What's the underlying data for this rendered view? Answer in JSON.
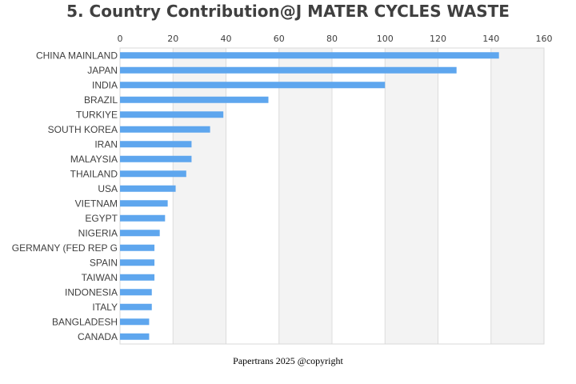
{
  "chart_data": {
    "type": "bar",
    "orientation": "horizontal",
    "title": "5. Country Contribution@J MATER CYCLES WASTE",
    "categories": [
      "CHINA MAINLAND",
      "JAPAN",
      "INDIA",
      "BRAZIL",
      "TURKIYE",
      "SOUTH KOREA",
      "IRAN",
      "MALAYSIA",
      "THAILAND",
      "USA",
      "VIETNAM",
      "EGYPT",
      "NIGERIA",
      "GERMANY (FED REP G",
      "SPAIN",
      "TAIWAN",
      "INDONESIA",
      "ITALY",
      "BANGLADESH",
      "CANADA"
    ],
    "values": [
      143,
      127,
      100,
      56,
      39,
      34,
      27,
      27,
      25,
      21,
      18,
      17,
      15,
      13,
      13,
      13,
      12,
      12,
      11,
      11
    ],
    "xlim": [
      0,
      160
    ],
    "xticks": [
      0,
      20,
      40,
      60,
      80,
      100,
      120,
      140,
      160
    ],
    "x_axis_position": "top",
    "grid": "vertical bands",
    "colors": {
      "bar": "#5ea6ee",
      "band": "#f3f3f3",
      "gridline": "#dcdcdc",
      "text": "#404040"
    }
  },
  "footer": {
    "text": "Papertrans 2025 @copyright"
  }
}
